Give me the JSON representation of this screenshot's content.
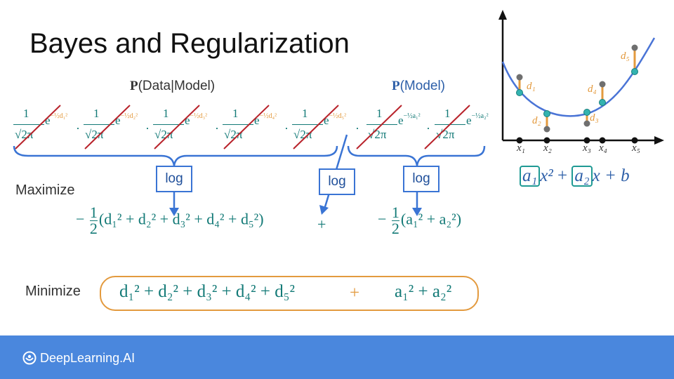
{
  "slide": {
    "title": "Bayes and Regularization"
  },
  "labels": {
    "p": "P",
    "data_model": "(Data|Model)",
    "model": "(Model)",
    "maximize": "Maximize",
    "minimize": "Minimize"
  },
  "fraction": {
    "numerator": "1",
    "denominator": "√2π",
    "base": "e",
    "dot": "·"
  },
  "exponents": {
    "d1": "−½d₁²",
    "d2": "−½d₂²",
    "d3": "−½d₃²",
    "d4": "−½d₄²",
    "d5": "−½d₅²",
    "a1": "−½a₁²",
    "a2": "−½a₂²"
  },
  "log_label": "log",
  "equations": {
    "max_left_prefix": "−",
    "half_num": "1",
    "half_den": "2",
    "max_left_body": "(d₁² + d₂² + d₃² + d₄² + d₅²)",
    "max_plus": "+",
    "max_right_body": "(a₁² + a₂²)",
    "min_left": "d₁² + d₂² + d₃² + d₄² + d₅²",
    "min_plus": "+",
    "min_right": "a₁² + a₂²"
  },
  "plot": {
    "x_labels": [
      "x₁",
      "x₂",
      "x₃",
      "x₄",
      "x₅"
    ],
    "d_labels": [
      "d₁",
      "d₂",
      "d₃",
      "d₄",
      "d₅"
    ],
    "curve_color": "#4a74d6",
    "residual_color": "#e39a3e",
    "point_color": "#6f6f6f",
    "fit_point_color": "#33b3b0"
  },
  "polynomial": {
    "a1": "a₁",
    "x2": "x²",
    "plus1": "+",
    "a2": "a₂",
    "x_b": "x + b"
  },
  "footer": {
    "brand": "DeepLearning.AI",
    "color": "#4a87dd"
  }
}
